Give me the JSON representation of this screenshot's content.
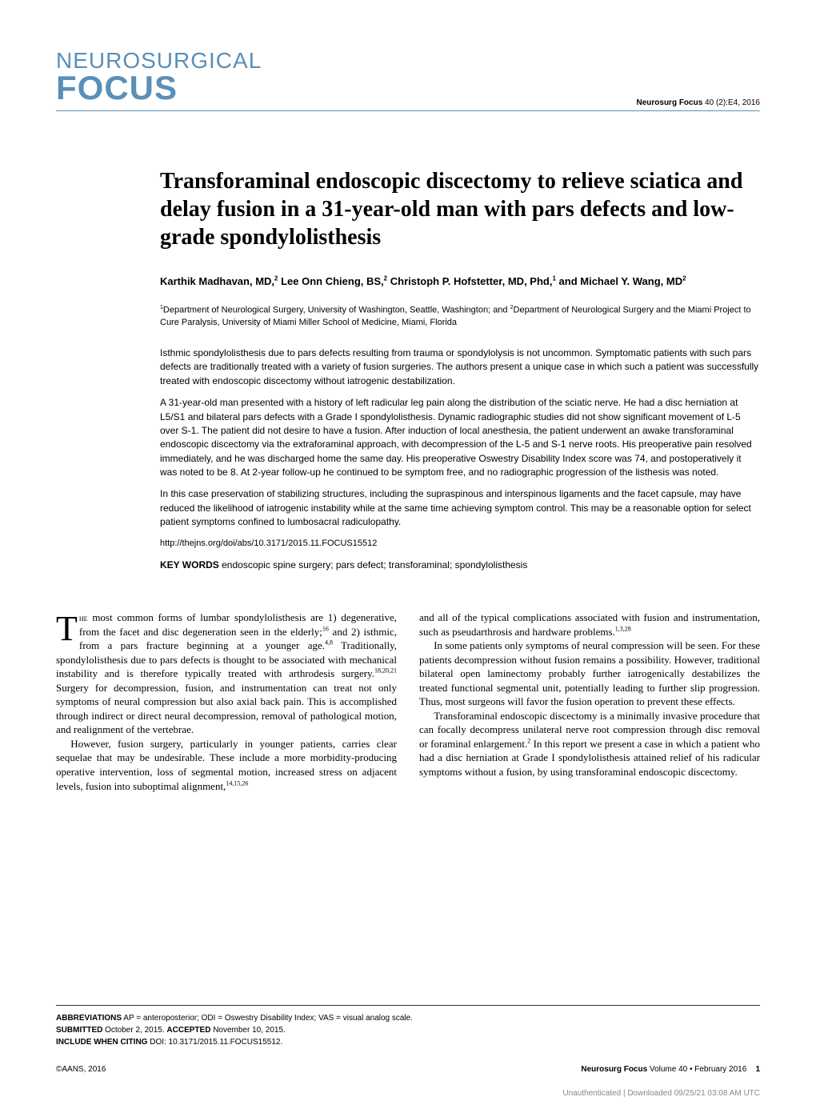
{
  "header": {
    "journal_line1": "NEUROSURGICAL",
    "journal_line2": "FOCUS",
    "citation_bold": "Neurosurg Focus",
    "citation_rest": " 40 (2):E4, 2016"
  },
  "title": "Transforaminal endoscopic discectomy to relieve sciatica and delay fusion in a 31-year-old man with pars defects and low-grade spondylolisthesis",
  "authors_html": "Karthik Madhavan, MD,<sup>2</sup> Lee Onn Chieng, BS,<sup>2</sup> Christoph P. Hofstetter, MD, Phd,<sup>1</sup> and Michael Y. Wang, MD<sup>2</sup>",
  "affiliations_html": "<sup>1</sup>Department of Neurological Surgery, University of Washington, Seattle, Washington; and <sup>2</sup>Department of Neurological Surgery and the Miami Project to Cure Paralysis, University of Miami Miller School of Medicine, Miami, Florida",
  "abstract": {
    "p1": "Isthmic spondylolisthesis due to pars defects resulting from trauma or spondylolysis is not uncommon. Symptomatic patients with such pars defects are traditionally treated with a variety of fusion surgeries. The authors present a unique case in which such a patient was successfully treated with endoscopic discectomy without iatrogenic destabilization.",
    "p2": "A 31-year-old man presented with a history of left radicular leg pain along the distribution of the sciatic nerve. He had a disc herniation at L5/S1 and bilateral pars defects with a Grade I spondylolisthesis. Dynamic radiographic studies did not show significant movement of L-5 over S-1. The patient did not desire to have a fusion. After induction of local anesthesia, the patient underwent an awake transforaminal endoscopic discectomy via the extraforaminal approach, with decompression of the L-5 and S-1 nerve roots. His preoperative pain resolved immediately, and he was discharged home the same day. His preoperative Oswestry Disability Index score was 74, and postoperatively it was noted to be 8. At 2-year follow-up he continued to be symptom free, and no radiographic progression of the listhesis was noted.",
    "p3": "In this case preservation of stabilizing structures, including the supraspinous and interspinous ligaments and the facet capsule, may have reduced the likelihood of iatrogenic instability while at the same time achieving symptom control. This may be a reasonable option for select patient symptoms confined to lumbosacral radiculopathy.",
    "link": "http://thejns.org/doi/abs/10.3171/2015.11.FOCUS15512",
    "keywords_label": "KEY WORDS",
    "keywords_text": " endoscopic spine surgery; pars defect; transforaminal; spondylolisthesis"
  },
  "body": {
    "col1": {
      "p1_dropcap": "T",
      "p1_html": "<span class=\"smallcaps\">he</span> most common forms of lumbar spondylolisthesis are 1) degenerative, from the facet and disc degeneration seen in the elderly;<sup>16</sup> and 2) isthmic, from a pars fracture beginning at a younger age.<sup>4,8</sup> Traditionally, spondylolisthesis due to pars defects is thought to be associated with mechanical instability and is therefore typically treated with arthrodesis surgery.<sup>18,20,21</sup> Surgery for decompression, fusion, and instrumentation can treat not only symptoms of neural compression but also axial back pain. This is accomplished through indirect or direct neural decompression, removal of pathological motion, and realignment of the vertebrae.",
      "p2_html": "However, fusion surgery, particularly in younger patients, carries clear sequelae that may be undesirable. These include a more morbidity-producing operative intervention, loss of segmental motion, increased stress on adjacent levels, fusion into suboptimal alignment,<sup>14,15,26</sup>"
    },
    "col2": {
      "p1_html": "and all of the typical complications associated with fusion and instrumentation, such as pseudarthrosis and hardware problems.<sup>1,3,28</sup>",
      "p2_html": "In some patients only symptoms of neural compression will be seen. For these patients decompression without fusion remains a possibility. However, traditional bilateral open laminectomy probably further iatrogenically destabilizes the treated functional segmental unit, potentially leading to further slip progression. Thus, most surgeons will favor the fusion operation to prevent these effects.",
      "p3_html": "Transforaminal endoscopic discectomy is a minimally invasive procedure that can focally decompress unilateral nerve root compression through disc removal or foraminal enlargement.<sup>2</sup> In this report we present a case in which a patient who had a disc herniation at Grade I spondylolisthesis attained relief of his radicular symptoms without a fusion, by using transforaminal endoscopic discectomy."
    }
  },
  "footer": {
    "abbrev_label": "ABBREVIATIONS",
    "abbrev_text": " AP = anteroposterior; ODI = Oswestry Disability Index; VAS = visual analog scale.",
    "submitted_label": "SUBMITTED",
    "submitted_text": " October 2, 2015. ",
    "accepted_label": "ACCEPTED",
    "accepted_text": " November 10, 2015.",
    "citing_label": "INCLUDE WHEN CITING",
    "citing_text": " DOI: 10.3171/2015.11.FOCUS15512.",
    "copyright": "©AANS, 2016",
    "journal_ref_bold": "Neurosurg Focus",
    "journal_ref_rest": " Volume 40 • February 2016",
    "page_num": "1",
    "watermark": "Unauthenticated | Downloaded 09/25/21 03:08 AM UTC"
  },
  "colors": {
    "accent": "#5a8fb8",
    "text": "#000000",
    "muted": "#888888",
    "background": "#ffffff"
  }
}
